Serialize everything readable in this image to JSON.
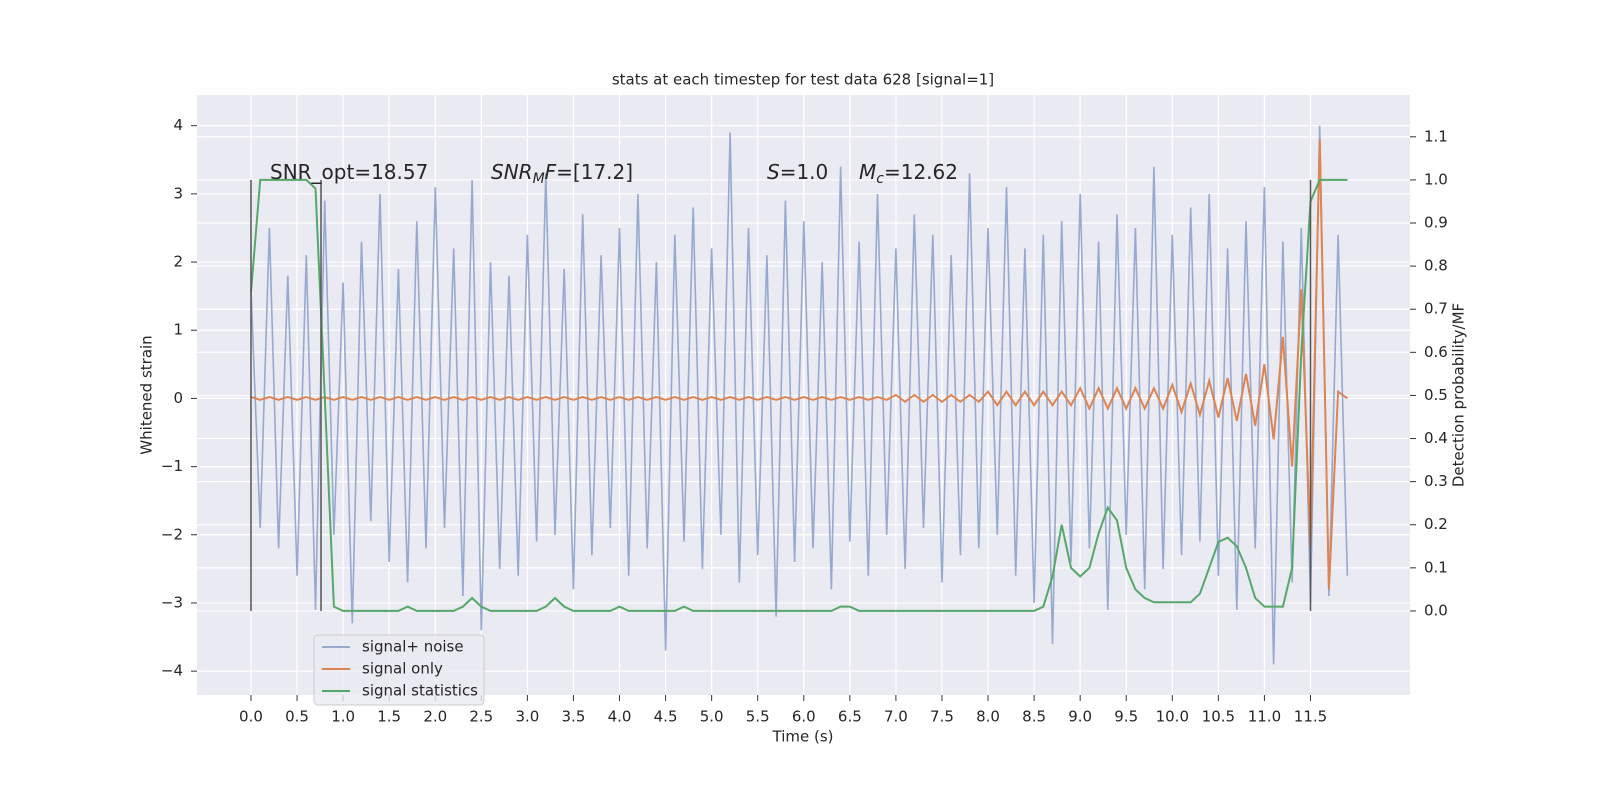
{
  "chart_data": {
    "type": "line",
    "title": "stats at each timestep for test data 628 [signal=1]",
    "xlabel": "Time (s)",
    "ylabel": "Whitened strain",
    "y2label": "Detection probability/MF",
    "xlim": [
      -0.586,
      12.58
    ],
    "ylim": [
      -4.35,
      4.45
    ],
    "y2lim": [
      -0.195,
      1.197
    ],
    "xticks": [
      {
        "value": 0,
        "label": "0.0"
      },
      0.5,
      {
        "value": 1,
        "label": "1.0"
      },
      1.5,
      {
        "value": 2,
        "label": "2.0"
      },
      2.5,
      {
        "value": 3,
        "label": "3.0"
      },
      3.5,
      {
        "value": 4,
        "label": "4.0"
      },
      4.5,
      {
        "value": 5,
        "label": "5.0"
      },
      5.5,
      {
        "value": 6,
        "label": "6.0"
      },
      6.5,
      {
        "value": 7,
        "label": "7.0"
      },
      7.5,
      {
        "value": 8,
        "label": "8.0"
      },
      8.5,
      {
        "value": 9,
        "label": "9.0"
      },
      9.5,
      {
        "value": 10,
        "label": "10.0"
      },
      10.5,
      {
        "value": 11,
        "label": "11.0"
      },
      11.5
    ],
    "yticks": [
      {
        "value": -4,
        "label": "−4"
      },
      {
        "value": -3,
        "label": "−3"
      },
      {
        "value": -2,
        "label": "−2"
      },
      {
        "value": -1,
        "label": "−1"
      },
      0,
      1,
      2,
      3,
      4
    ],
    "y2ticks": [
      {
        "value": 0,
        "label": "0.0"
      },
      0.1,
      0.2,
      0.3,
      0.4,
      0.5,
      0.6,
      0.7,
      0.8,
      0.9,
      {
        "value": 1,
        "label": "1.0"
      },
      1.1
    ],
    "grid": true,
    "legend": "lower left",
    "x": [
      0.0,
      0.1,
      0.2,
      0.3,
      0.4,
      0.5,
      0.6,
      0.7,
      0.8,
      0.9,
      1.0,
      1.1,
      1.2,
      1.3,
      1.4,
      1.5,
      1.6,
      1.7,
      1.8,
      1.9,
      2.0,
      2.1,
      2.2,
      2.3,
      2.4,
      2.5,
      2.6,
      2.7,
      2.8,
      2.9,
      3.0,
      3.1,
      3.2,
      3.3,
      3.4,
      3.5,
      3.6,
      3.7,
      3.8,
      3.9,
      4.0,
      4.1,
      4.2,
      4.3,
      4.4,
      4.5,
      4.6,
      4.7,
      4.8,
      4.9,
      5.0,
      5.1,
      5.2,
      5.3,
      5.4,
      5.5,
      5.6,
      5.7,
      5.8,
      5.9,
      6.0,
      6.1,
      6.2,
      6.3,
      6.4,
      6.5,
      6.6,
      6.7,
      6.8,
      6.9,
      7.0,
      7.1,
      7.2,
      7.3,
      7.4,
      7.5,
      7.6,
      7.7,
      7.8,
      7.9,
      8.0,
      8.1,
      8.2,
      8.3,
      8.4,
      8.5,
      8.6,
      8.7,
      8.8,
      8.9,
      9.0,
      9.1,
      9.2,
      9.3,
      9.4,
      9.5,
      9.6,
      9.7,
      9.8,
      9.9,
      10.0,
      10.1,
      10.2,
      10.3,
      10.4,
      10.5,
      10.6,
      10.7,
      10.8,
      10.9,
      11.0,
      11.1,
      11.2,
      11.3,
      11.4,
      11.5,
      11.6,
      11.7,
      11.8,
      11.9
    ],
    "series": [
      {
        "name": "signal+ noise",
        "color": "#97a9cf",
        "values": [
          1.6,
          -1.9,
          2.5,
          -2.2,
          1.8,
          -2.6,
          2.1,
          -3.1,
          2.9,
          -2.0,
          1.7,
          -3.3,
          2.3,
          -1.8,
          3.0,
          -2.4,
          1.9,
          -2.7,
          2.6,
          -2.2,
          3.1,
          -1.9,
          2.2,
          -2.9,
          3.2,
          -3.4,
          2.0,
          -2.5,
          1.8,
          -2.6,
          2.4,
          -2.1,
          3.3,
          -2.0,
          1.9,
          -2.8,
          2.7,
          -2.3,
          2.1,
          -1.9,
          2.5,
          -2.6,
          3.0,
          -2.2,
          2.0,
          -3.7,
          2.4,
          -2.1,
          2.8,
          -2.5,
          2.2,
          -2.0,
          3.9,
          -2.7,
          2.5,
          -2.3,
          2.1,
          -3.2,
          2.9,
          -2.4,
          2.6,
          -2.2,
          2.0,
          -2.8,
          3.4,
          -2.1,
          2.3,
          -2.6,
          3.0,
          -2.0,
          2.2,
          -2.5,
          2.7,
          -1.9,
          2.4,
          -2.7,
          2.1,
          -2.3,
          3.3,
          -2.2,
          2.5,
          -2.0,
          3.1,
          -2.6,
          2.2,
          -3.0,
          2.4,
          -3.6,
          2.6,
          -2.4,
          3.0,
          -2.2,
          2.3,
          -3.1,
          2.7,
          -2.0,
          2.5,
          -2.8,
          3.4,
          -2.5,
          2.4,
          -2.3,
          2.8,
          -2.1,
          3.0,
          -2.6,
          2.2,
          -3.1,
          2.6,
          -2.2,
          3.1,
          -3.9,
          2.3,
          -2.7,
          2.5,
          -3.0,
          4.0,
          -2.9,
          2.4,
          -2.6
        ]
      },
      {
        "name": "signal only",
        "color": "#dd8452",
        "values": [
          0.02,
          -0.02,
          0.02,
          -0.02,
          0.02,
          -0.02,
          0.02,
          -0.02,
          0.02,
          -0.02,
          0.02,
          -0.02,
          0.02,
          -0.02,
          0.02,
          -0.02,
          0.02,
          -0.02,
          0.02,
          -0.02,
          0.02,
          -0.02,
          0.02,
          -0.02,
          0.02,
          -0.02,
          0.02,
          -0.02,
          0.02,
          -0.02,
          0.02,
          -0.02,
          0.02,
          -0.02,
          0.02,
          -0.02,
          0.02,
          -0.02,
          0.02,
          -0.02,
          0.02,
          -0.02,
          0.02,
          -0.02,
          0.02,
          -0.02,
          0.02,
          -0.02,
          0.02,
          -0.02,
          0.02,
          -0.02,
          0.02,
          -0.02,
          0.02,
          -0.02,
          0.02,
          -0.02,
          0.02,
          -0.02,
          0.02,
          -0.02,
          0.02,
          -0.02,
          0.02,
          -0.02,
          0.02,
          -0.02,
          0.02,
          -0.02,
          0.05,
          -0.05,
          0.05,
          -0.05,
          0.05,
          -0.05,
          0.05,
          -0.05,
          0.05,
          -0.05,
          0.1,
          -0.1,
          0.1,
          -0.1,
          0.1,
          -0.1,
          0.1,
          -0.1,
          0.1,
          -0.1,
          0.15,
          -0.15,
          0.15,
          -0.15,
          0.15,
          -0.15,
          0.15,
          -0.15,
          0.15,
          -0.15,
          0.2,
          -0.2,
          0.22,
          -0.24,
          0.26,
          -0.28,
          0.3,
          -0.33,
          0.36,
          -0.4,
          0.5,
          -0.6,
          0.9,
          -1.0,
          1.6,
          -2.2,
          3.8,
          -2.8,
          0.1,
          0.0
        ]
      },
      {
        "name": "signal statistics",
        "color": "#55a868",
        "axis": "y2",
        "values": [
          0.74,
          1.0,
          1.0,
          1.0,
          1.0,
          1.0,
          1.0,
          0.98,
          0.5,
          0.01,
          0.0,
          0.0,
          0.0,
          0.0,
          0.0,
          0.0,
          0.0,
          0.01,
          0.0,
          0.0,
          0.0,
          0.0,
          0.0,
          0.01,
          0.03,
          0.01,
          0.0,
          0.0,
          0.0,
          0.0,
          0.0,
          0.0,
          0.01,
          0.03,
          0.01,
          0.0,
          0.0,
          0.0,
          0.0,
          0.0,
          0.01,
          0.0,
          0.0,
          0.0,
          0.0,
          0.0,
          0.0,
          0.01,
          0.0,
          0.0,
          0.0,
          0.0,
          0.0,
          0.0,
          0.0,
          0.0,
          0.0,
          0.0,
          0.0,
          0.0,
          0.0,
          0.0,
          0.0,
          0.0,
          0.01,
          0.01,
          0.0,
          0.0,
          0.0,
          0.0,
          0.0,
          0.0,
          0.0,
          0.0,
          0.0,
          0.0,
          0.0,
          0.0,
          0.0,
          0.0,
          0.0,
          0.0,
          0.0,
          0.0,
          0.0,
          0.0,
          0.01,
          0.08,
          0.2,
          0.1,
          0.08,
          0.1,
          0.18,
          0.24,
          0.21,
          0.1,
          0.05,
          0.03,
          0.02,
          0.02,
          0.02,
          0.02,
          0.02,
          0.04,
          0.1,
          0.16,
          0.17,
          0.15,
          0.1,
          0.03,
          0.01,
          0.01,
          0.01,
          0.1,
          0.6,
          0.95,
          1.0,
          1.0,
          1.0,
          1.0
        ]
      }
    ],
    "vlines": [
      0,
      0.76,
      11.5
    ],
    "vline_range": [
      0,
      1.0
    ],
    "vline_color": "#555555",
    "annotations": [
      [
        {
          "text": "SNR_opt=18.57",
          "style": "normal"
        }
      ],
      [
        {
          "text": "SNR",
          "style": "italic"
        },
        {
          "text": "M",
          "style": "sub"
        },
        {
          "text": "F",
          "style": "italic"
        },
        {
          "text": "=[17.2]",
          "style": "normal"
        }
      ],
      [
        {
          "text": "S",
          "style": "italic"
        },
        {
          "text": "=1.0",
          "style": "normal"
        }
      ],
      [
        {
          "text": "M",
          "style": "italic"
        },
        {
          "text": "c",
          "style": "sub"
        },
        {
          "text": "=12.62",
          "style": "normal"
        }
      ]
    ]
  }
}
